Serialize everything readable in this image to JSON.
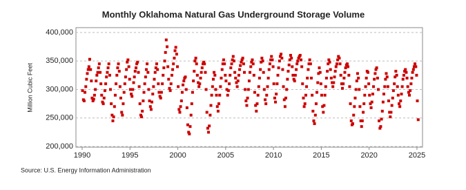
{
  "chart_data": {
    "type": "scatter",
    "title": "Monthly Oklahoma Natural Gas Underground Storage Volume",
    "y_label": "Million Cubic Feet",
    "source": "Source: U.S. Energy Information Administration",
    "color": "#cc0000",
    "grid": true,
    "xlim": [
      1989.35,
      2025.58
    ],
    "ylim": [
      198800,
      408500
    ],
    "xticks": [
      1990,
      1995,
      2000,
      2005,
      2010,
      2015,
      2020,
      2025
    ],
    "yticks": [
      {
        "value": 200000,
        "label": "200,000"
      },
      {
        "value": 250000,
        "label": "250,000"
      },
      {
        "value": 300000,
        "label": "300,000"
      },
      {
        "value": 350000,
        "label": "350,000"
      },
      {
        "value": 400000,
        "label": "400,000"
      }
    ],
    "x": [
      1990.04,
      1990.13,
      1990.21,
      1990.29,
      1990.38,
      1990.46,
      1990.54,
      1990.63,
      1990.71,
      1990.79,
      1990.88,
      1990.96,
      1991.04,
      1991.13,
      1991.21,
      1991.29,
      1991.38,
      1991.46,
      1991.54,
      1991.63,
      1991.71,
      1991.79,
      1991.88,
      1991.96,
      1992.04,
      1992.13,
      1992.21,
      1992.29,
      1992.38,
      1992.46,
      1992.54,
      1992.63,
      1992.71,
      1992.79,
      1992.88,
      1992.96,
      1993.04,
      1993.13,
      1993.21,
      1993.29,
      1993.38,
      1993.46,
      1993.54,
      1993.63,
      1993.71,
      1993.79,
      1993.88,
      1993.96,
      1994.04,
      1994.13,
      1994.21,
      1994.29,
      1994.38,
      1994.46,
      1994.54,
      1994.63,
      1994.71,
      1994.79,
      1994.88,
      1994.96,
      1995.04,
      1995.13,
      1995.21,
      1995.29,
      1995.38,
      1995.46,
      1995.54,
      1995.63,
      1995.71,
      1995.79,
      1995.88,
      1995.96,
      1996.04,
      1996.13,
      1996.21,
      1996.29,
      1996.38,
      1996.46,
      1996.54,
      1996.63,
      1996.71,
      1996.79,
      1996.88,
      1996.96,
      1997.04,
      1997.13,
      1997.21,
      1997.29,
      1997.38,
      1997.46,
      1997.54,
      1997.63,
      1997.71,
      1997.79,
      1997.88,
      1997.96,
      1998.04,
      1998.13,
      1998.21,
      1998.29,
      1998.38,
      1998.46,
      1998.54,
      1998.63,
      1998.71,
      1998.79,
      1998.88,
      1998.96,
      1999.04,
      1999.13,
      1999.21,
      1999.29,
      1999.38,
      1999.46,
      1999.54,
      1999.63,
      1999.71,
      1999.79,
      1999.88,
      1999.96,
      2000.04,
      2000.13,
      2000.21,
      2000.29,
      2000.38,
      2000.46,
      2000.54,
      2000.63,
      2000.71,
      2000.79,
      2000.88,
      2000.96,
      2001.04,
      2001.13,
      2001.21,
      2001.29,
      2001.38,
      2001.46,
      2001.54,
      2001.63,
      2001.71,
      2001.79,
      2001.88,
      2001.96,
      2002.04,
      2002.13,
      2002.21,
      2002.29,
      2002.38,
      2002.46,
      2002.54,
      2002.63,
      2002.71,
      2002.79,
      2002.88,
      2002.96,
      2003.04,
      2003.13,
      2003.21,
      2003.29,
      2003.38,
      2003.46,
      2003.54,
      2003.63,
      2003.71,
      2003.79,
      2003.88,
      2003.96,
      2004.04,
      2004.13,
      2004.21,
      2004.29,
      2004.38,
      2004.46,
      2004.54,
      2004.63,
      2004.71,
      2004.79,
      2004.88,
      2004.96,
      2005.04,
      2005.13,
      2005.21,
      2005.29,
      2005.38,
      2005.46,
      2005.54,
      2005.63,
      2005.71,
      2005.79,
      2005.88,
      2005.96,
      2006.04,
      2006.13,
      2006.21,
      2006.29,
      2006.38,
      2006.46,
      2006.54,
      2006.63,
      2006.71,
      2006.79,
      2006.88,
      2006.96,
      2007.04,
      2007.13,
      2007.21,
      2007.29,
      2007.38,
      2007.46,
      2007.54,
      2007.63,
      2007.71,
      2007.79,
      2007.88,
      2007.96,
      2008.04,
      2008.13,
      2008.21,
      2008.29,
      2008.38,
      2008.46,
      2008.54,
      2008.63,
      2008.71,
      2008.79,
      2008.88,
      2008.96,
      2009.04,
      2009.13,
      2009.21,
      2009.29,
      2009.38,
      2009.46,
      2009.54,
      2009.63,
      2009.71,
      2009.79,
      2009.88,
      2009.96,
      2010.04,
      2010.13,
      2010.21,
      2010.29,
      2010.38,
      2010.46,
      2010.54,
      2010.63,
      2010.71,
      2010.79,
      2010.88,
      2010.96,
      2011.04,
      2011.13,
      2011.21,
      2011.29,
      2011.38,
      2011.46,
      2011.54,
      2011.63,
      2011.71,
      2011.79,
      2011.88,
      2011.96,
      2012.04,
      2012.13,
      2012.21,
      2012.29,
      2012.38,
      2012.46,
      2012.54,
      2012.63,
      2012.71,
      2012.79,
      2012.88,
      2012.96,
      2013.04,
      2013.13,
      2013.21,
      2013.29,
      2013.38,
      2013.46,
      2013.54,
      2013.63,
      2013.71,
      2013.79,
      2013.88,
      2013.96,
      2014.04,
      2014.13,
      2014.21,
      2014.29,
      2014.38,
      2014.46,
      2014.54,
      2014.63,
      2014.71,
      2014.79,
      2014.88,
      2014.96,
      2015.04,
      2015.13,
      2015.21,
      2015.29,
      2015.38,
      2015.46,
      2015.54,
      2015.63,
      2015.71,
      2015.79,
      2015.88,
      2015.96,
      2016.04,
      2016.13,
      2016.21,
      2016.29,
      2016.38,
      2016.46,
      2016.54,
      2016.63,
      2016.71,
      2016.79,
      2016.88,
      2016.96,
      2017.04,
      2017.13,
      2017.21,
      2017.29,
      2017.38,
      2017.46,
      2017.54,
      2017.63,
      2017.71,
      2017.79,
      2017.88,
      2017.96,
      2018.04,
      2018.13,
      2018.21,
      2018.29,
      2018.38,
      2018.46,
      2018.54,
      2018.63,
      2018.71,
      2018.79,
      2018.88,
      2018.96,
      2019.04,
      2019.13,
      2019.21,
      2019.29,
      2019.38,
      2019.46,
      2019.54,
      2019.63,
      2019.71,
      2019.79,
      2019.88,
      2019.96,
      2020.04,
      2020.13,
      2020.21,
      2020.29,
      2020.38,
      2020.46,
      2020.54,
      2020.63,
      2020.71,
      2020.79,
      2020.88,
      2020.96,
      2021.04,
      2021.13,
      2021.21,
      2021.29,
      2021.38,
      2021.46,
      2021.54,
      2021.63,
      2021.71,
      2021.79,
      2021.88,
      2021.96,
      2022.04,
      2022.13,
      2022.21,
      2022.29,
      2022.38,
      2022.46,
      2022.54,
      2022.63,
      2022.71,
      2022.79,
      2022.88,
      2022.96,
      2023.04,
      2023.13,
      2023.21,
      2023.29,
      2023.38,
      2023.46,
      2023.54,
      2023.63,
      2023.71,
      2023.79,
      2023.88,
      2023.96,
      2024.04,
      2024.13,
      2024.21,
      2024.29,
      2024.38,
      2024.46,
      2024.54,
      2024.63,
      2024.71,
      2024.79,
      2024.88,
      2024.96,
      2025.04,
      2025.13
    ],
    "values": [
      298000,
      282000,
      280000,
      295000,
      305000,
      318000,
      328000,
      335000,
      340000,
      353000,
      335000,
      315000,
      285000,
      280000,
      283000,
      290000,
      300000,
      315000,
      325000,
      330000,
      338000,
      345000,
      330000,
      310000,
      290000,
      278000,
      275000,
      285000,
      298000,
      310000,
      322000,
      330000,
      338000,
      345000,
      325000,
      300000,
      275000,
      255000,
      245000,
      252000,
      270000,
      290000,
      310000,
      325000,
      338000,
      345000,
      332000,
      305000,
      285000,
      260000,
      255000,
      275000,
      295000,
      310000,
      322000,
      335000,
      348000,
      352000,
      340000,
      318000,
      300000,
      292000,
      288000,
      300000,
      312000,
      322000,
      332000,
      338000,
      345000,
      348000,
      330000,
      305000,
      275000,
      255000,
      252000,
      262000,
      280000,
      295000,
      310000,
      322000,
      335000,
      345000,
      330000,
      300000,
      280000,
      270000,
      265000,
      278000,
      292000,
      305000,
      318000,
      330000,
      338000,
      345000,
      335000,
      310000,
      295000,
      288000,
      285000,
      295000,
      310000,
      325000,
      338000,
      350000,
      365000,
      387000,
      375000,
      340000,
      318000,
      302000,
      298000,
      310000,
      325000,
      335000,
      345000,
      355000,
      368000,
      374000,
      362000,
      340000,
      305000,
      265000,
      260000,
      270000,
      280000,
      295000,
      308000,
      315000,
      320000,
      322000,
      300000,
      268000,
      238000,
      225000,
      222000,
      235000,
      255000,
      275000,
      295000,
      315000,
      332000,
      350000,
      355000,
      345000,
      325000,
      312000,
      305000,
      310000,
      320000,
      330000,
      338000,
      345000,
      348000,
      345000,
      330000,
      300000,
      260000,
      232000,
      225000,
      236000,
      255000,
      272000,
      290000,
      305000,
      318000,
      330000,
      325000,
      300000,
      290000,
      270000,
      262000,
      275000,
      290000,
      305000,
      320000,
      335000,
      345000,
      352000,
      345000,
      325000,
      315000,
      300000,
      290000,
      298000,
      310000,
      325000,
      338000,
      345000,
      352000,
      358000,
      350000,
      330000,
      320000,
      312000,
      305000,
      315000,
      325000,
      335000,
      342000,
      348000,
      352000,
      355000,
      345000,
      330000,
      300000,
      280000,
      272000,
      285000,
      300000,
      315000,
      330000,
      340000,
      348000,
      352000,
      345000,
      325000,
      295000,
      272000,
      262000,
      275000,
      290000,
      305000,
      320000,
      335000,
      348000,
      355000,
      350000,
      330000,
      300000,
      282000,
      275000,
      290000,
      305000,
      320000,
      335000,
      345000,
      352000,
      358000,
      352000,
      340000,
      310000,
      285000,
      278000,
      292000,
      310000,
      325000,
      338000,
      350000,
      358000,
      362000,
      355000,
      335000,
      305000,
      282000,
      270000,
      285000,
      300000,
      318000,
      332000,
      343000,
      352000,
      360000,
      355000,
      340000,
      325000,
      318000,
      315000,
      325000,
      335000,
      345000,
      350000,
      355000,
      358000,
      360000,
      352000,
      340000,
      310000,
      285000,
      270000,
      275000,
      290000,
      305000,
      320000,
      335000,
      345000,
      352000,
      345000,
      320000,
      290000,
      262000,
      245000,
      240000,
      255000,
      275000,
      295000,
      312000,
      328000,
      338000,
      330000,
      310000,
      290000,
      270000,
      260000,
      272000,
      290000,
      305000,
      320000,
      332000,
      345000,
      352000,
      348000,
      335000,
      320000,
      312000,
      305000,
      312000,
      322000,
      332000,
      340000,
      345000,
      352000,
      358000,
      355000,
      345000,
      325000,
      310000,
      302000,
      310000,
      320000,
      330000,
      338000,
      343000,
      345000,
      340000,
      325000,
      305000,
      275000,
      245000,
      238000,
      240000,
      255000,
      270000,
      285000,
      300000,
      315000,
      328000,
      320000,
      300000,
      270000,
      245000,
      235000,
      245000,
      260000,
      275000,
      290000,
      305000,
      320000,
      332000,
      330000,
      310000,
      290000,
      275000,
      268000,
      278000,
      292000,
      305000,
      318000,
      328000,
      335000,
      338000,
      320000,
      300000,
      245000,
      232000,
      235000,
      248000,
      262000,
      278000,
      292000,
      305000,
      318000,
      328000,
      322000,
      305000,
      280000,
      260000,
      252000,
      260000,
      272000,
      285000,
      298000,
      310000,
      322000,
      332000,
      325000,
      305000,
      290000,
      275000,
      270000,
      280000,
      292000,
      305000,
      318000,
      325000,
      332000,
      335000,
      330000,
      320000,
      305000,
      295000,
      290000,
      298000,
      310000,
      320000,
      330000,
      335000,
      340000,
      345000,
      340000,
      325000,
      280000,
      247000
    ]
  }
}
